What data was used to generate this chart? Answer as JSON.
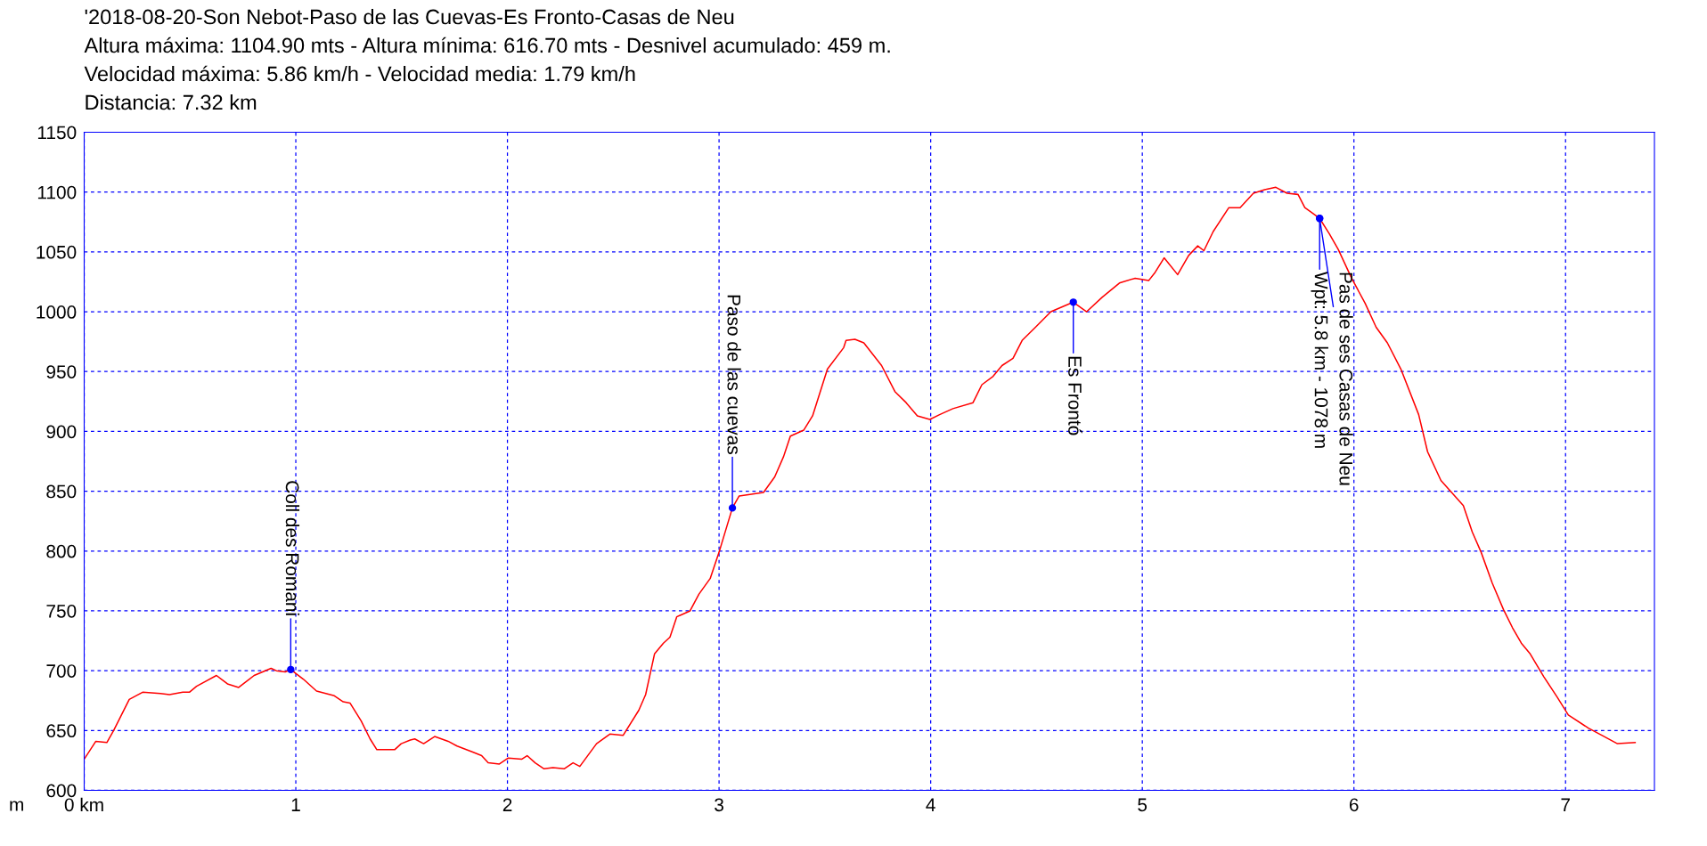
{
  "chart_data": {
    "type": "line",
    "title": "'2018-08-20-Son Nebot-Paso de las Cuevas-Es Fronto-Casas de Neu",
    "annotations": [
      "Altura máxima: 1104.90 mts - Altura mínima: 616.70 mts - Desnivel acumulado: 459 m.",
      "Velocidad máxima: 5.86 km/h - Velocidad media: 1.79 km/h",
      "Distancia: 7.32 km",
      {
        "text": "Coll des Romani",
        "x": 0.976,
        "y": 701
      },
      {
        "text": "Paso de las cuevas",
        "x": 3.063,
        "y": 836
      },
      {
        "text": "Es Frontó",
        "x": 4.674,
        "y": 1008
      },
      {
        "text": "Wpt: 5.8 km - 1078 m",
        "x": 5.838,
        "y": 1078
      },
      {
        "text": "Pas de ses Casas de Neu",
        "x": 5.838,
        "y": 1078
      }
    ],
    "ylabel": "m",
    "series": [
      {
        "color": "#ff0000",
        "x": [
          0,
          0.055,
          0.107,
          0.139,
          0.213,
          0.276,
          0.36,
          0.403,
          0.466,
          0.497,
          0.531,
          0.625,
          0.677,
          0.73,
          0.803,
          0.883,
          0.908,
          0.95,
          0.976,
          1.035,
          1.098,
          1.182,
          1.224,
          1.256,
          1.309,
          1.351,
          1.383,
          1.467,
          1.498,
          1.541,
          1.562,
          1.604,
          1.656,
          1.72,
          1.762,
          1.836,
          1.878,
          1.909,
          1.962,
          2.004,
          2.067,
          2.093,
          2.131,
          2.173,
          2.215,
          2.268,
          2.31,
          2.342,
          2.421,
          2.484,
          2.547,
          2.621,
          2.653,
          2.695,
          2.737,
          2.768,
          2.8,
          2.863,
          2.905,
          2.958,
          3.0,
          3.063,
          3.095,
          3.21,
          3.263,
          3.305,
          3.337,
          3.4,
          3.442,
          3.512,
          3.589,
          3.6,
          3.642,
          3.684,
          3.768,
          3.832,
          3.884,
          3.937,
          3.996,
          4.042,
          4.105,
          4.2,
          4.242,
          4.295,
          4.337,
          4.389,
          4.432,
          4.495,
          4.568,
          4.674,
          4.737,
          4.81,
          4.892,
          4.966,
          5.03,
          5.061,
          5.103,
          5.167,
          5.219,
          5.262,
          5.291,
          5.335,
          5.409,
          5.462,
          5.525,
          5.578,
          5.631,
          5.684,
          5.736,
          5.768,
          5.838,
          5.884,
          5.926,
          5.989,
          6.053,
          6.105,
          6.158,
          6.222,
          6.306,
          6.348,
          6.411,
          6.517,
          6.559,
          6.601,
          6.654,
          6.707,
          6.749,
          6.791,
          6.833,
          6.897,
          6.96,
          7.013,
          7.108,
          7.171,
          7.245,
          7.329
        ],
        "values": [
          626,
          641,
          640,
          650,
          676,
          682,
          681,
          680,
          682,
          682,
          687,
          696,
          689,
          686,
          696,
          702,
          700,
          699,
          701,
          693,
          683,
          679,
          674,
          673,
          658,
          643,
          634,
          634,
          639,
          642,
          643,
          639,
          645,
          641,
          637,
          632,
          629,
          623,
          622,
          627,
          626,
          629,
          623,
          618,
          619,
          618,
          623,
          620,
          639,
          647,
          646,
          667,
          680,
          714,
          723,
          728,
          745,
          750,
          764,
          777,
          799,
          836,
          846,
          849,
          862,
          879,
          896,
          901,
          913,
          952,
          970,
          976,
          977,
          974,
          955,
          933,
          924,
          913,
          910,
          914,
          919,
          924,
          939,
          946,
          955,
          961,
          976,
          987,
          1000,
          1008,
          1000,
          1012,
          1024,
          1028,
          1026,
          1033,
          1045,
          1031,
          1047,
          1055,
          1051,
          1067,
          1087,
          1087,
          1099,
          1102,
          1104,
          1099,
          1098,
          1087,
          1078,
          1065,
          1052,
          1028,
          1007,
          987,
          974,
          952,
          914,
          883,
          859,
          838,
          816,
          799,
          773,
          751,
          736,
          723,
          714,
          695,
          678,
          663,
          652,
          646,
          639,
          640
        ]
      }
    ],
    "xlim": [
      0,
      7.42
    ],
    "ylim": [
      600,
      1150
    ],
    "xticks": [
      {
        "value": 0,
        "label": "0 km"
      },
      1,
      2,
      3,
      4,
      5,
      6,
      7
    ],
    "yticks": [
      600,
      650,
      700,
      750,
      800,
      850,
      900,
      950,
      1000,
      1050,
      1100,
      1150
    ],
    "grid": true,
    "legend": false,
    "marker": "none",
    "line_style": "solid"
  }
}
